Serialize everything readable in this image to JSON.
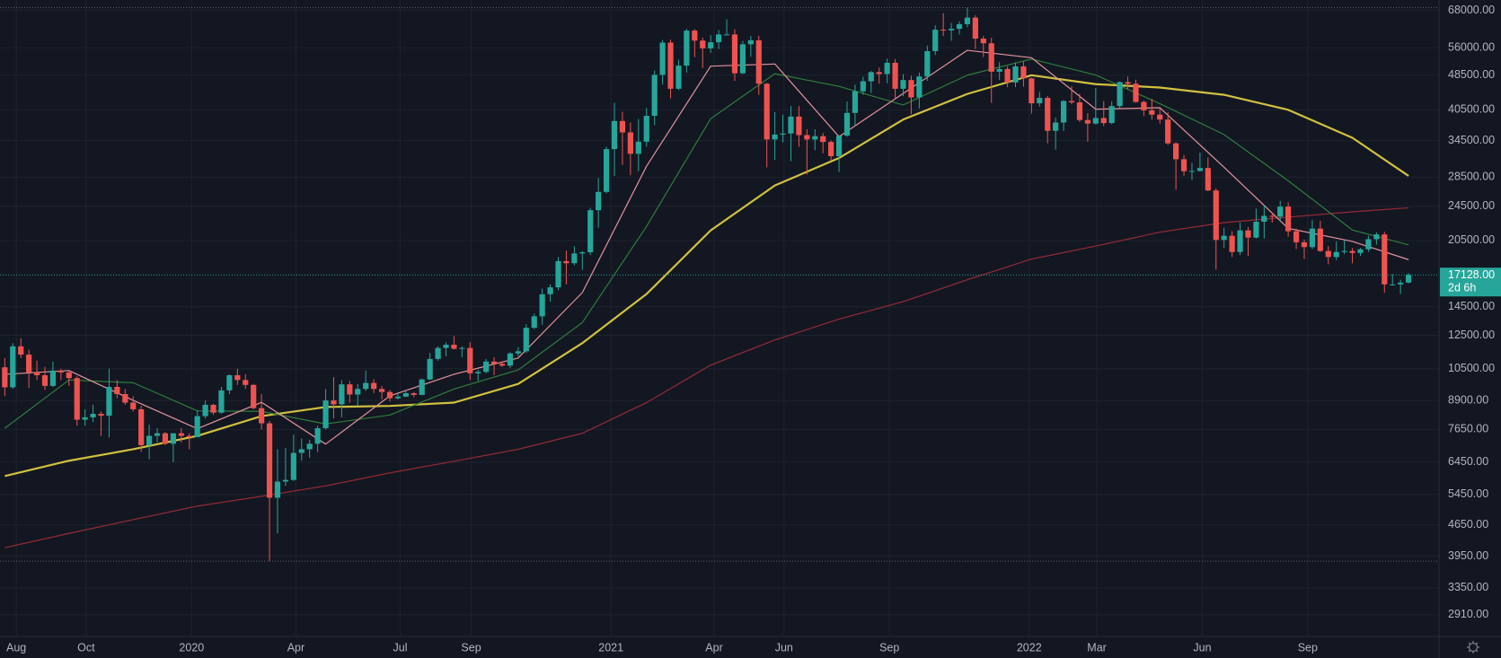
{
  "chart_data": {
    "type": "candlestick",
    "log_scale": true,
    "grid": true,
    "up_color": "#26a69a",
    "down_color": "#ef5350",
    "xlim": [
      -0.6,
      178.8
    ],
    "xticks": [
      {
        "value": 1.43,
        "label": "Aug"
      },
      {
        "value": 10.14,
        "label": "Oct"
      },
      {
        "value": 23.29,
        "label": "2020"
      },
      {
        "value": 36.29,
        "label": "Apr"
      },
      {
        "value": 49.29,
        "label": "Jul"
      },
      {
        "value": 58.14,
        "label": "Sep"
      },
      {
        "value": 75.57,
        "label": "2021"
      },
      {
        "value": 88.43,
        "label": "Apr"
      },
      {
        "value": 97.14,
        "label": "Jun"
      },
      {
        "value": 110.29,
        "label": "Sep"
      },
      {
        "value": 127.71,
        "label": "2022"
      },
      {
        "value": 136.14,
        "label": "Mar"
      },
      {
        "value": 149.29,
        "label": "Jun"
      },
      {
        "value": 162.43,
        "label": "Sep"
      }
    ],
    "ylim": [
      2600,
      71800
    ],
    "yticks": [
      {
        "value": 68000,
        "label": "68000.00"
      },
      {
        "value": 56000,
        "label": "56000.00"
      },
      {
        "value": 48500,
        "label": "48500.00"
      },
      {
        "value": 40500,
        "label": "40500.00"
      },
      {
        "value": 34500,
        "label": "34500.00"
      },
      {
        "value": 28500,
        "label": "28500.00"
      },
      {
        "value": 24500,
        "label": "24500.00"
      },
      {
        "value": 20500,
        "label": "20500.00"
      },
      {
        "value": 14500,
        "label": "14500.00"
      },
      {
        "value": 12500,
        "label": "12500.00"
      },
      {
        "value": 10500,
        "label": "10500.00"
      },
      {
        "value": 8900,
        "label": "8900.00"
      },
      {
        "value": 7650,
        "label": "7650.00"
      },
      {
        "value": 6450,
        "label": "6450.00"
      },
      {
        "value": 5450,
        "label": "5450.00"
      },
      {
        "value": 4650,
        "label": "4650.00"
      },
      {
        "value": 3950,
        "label": "3950.00"
      },
      {
        "value": 3350,
        "label": "3350.00"
      },
      {
        "value": 2910,
        "label": "2910.00"
      }
    ],
    "last_price": {
      "value": 17128,
      "label": "17128.00"
    },
    "countdown": "2d 6h",
    "open": [
      10580,
      9530,
      11800,
      11300,
      10300,
      10150,
      9600,
      10400,
      10300,
      10000,
      8050,
      8150,
      8300,
      8220,
      9550,
      9200,
      8800,
      8500,
      7050,
      7400,
      7500,
      7100,
      7500,
      7400,
      7350,
      8200,
      8700,
      8350,
      9380,
      10150,
      9900,
      9650,
      8550,
      7900,
      5360,
      5830,
      5880,
      6770,
      6900,
      7100,
      7700,
      8900,
      8720,
      9680,
      9180,
      9450,
      9750,
      9450,
      9300,
      9000,
      9080,
      9240,
      9160,
      9930,
      11050,
      11700,
      11900,
      11650,
      11700,
      10250,
      10330,
      10900,
      10770,
      10670,
      11370,
      11500,
      13000,
      13800,
      15480,
      16050,
      18400,
      18200,
      19150,
      19270,
      24000,
      26400,
      33000,
      38200,
      36000,
      32200,
      34300,
      39250,
      48600,
      57500,
      45200,
      51000,
      61200,
      58100,
      55800,
      57600,
      60000,
      60000,
      49000,
      57000,
      58200,
      46400,
      34700,
      35600,
      35800,
      39100,
      35500,
      34700,
      35300,
      34250,
      31800,
      35400,
      39850,
      44600,
      47000,
      49300,
      48800,
      51750,
      45200,
      47300,
      43200,
      48200,
      55000,
      61500,
      61300,
      61800,
      63300,
      65500,
      58700,
      57300,
      49400,
      50100,
      46700,
      50800,
      47700,
      41900,
      43100,
      36300,
      37900,
      42400,
      42100,
      38400,
      37700,
      38800,
      37800,
      41300,
      46800,
      46400,
      42200,
      40400,
      39500,
      38500,
      34000,
      31300,
      29400,
      29450,
      29900,
      26600,
      20550,
      21000,
      19300,
      21600,
      20800,
      22600,
      23300,
      23200,
      24450,
      21500,
      20300,
      19800,
      21800,
      19400,
      18800,
      19300,
      19400,
      19200,
      19570,
      20630,
      21150,
      16300,
      16300,
      16450
    ],
    "high": [
      11100,
      12000,
      12300,
      11600,
      10950,
      10600,
      10900,
      10500,
      10350,
      10100,
      8500,
      8700,
      8400,
      10500,
      9900,
      9450,
      9100,
      8650,
      7850,
      7700,
      7550,
      7500,
      7700,
      7500,
      8450,
      8900,
      8750,
      9550,
      10200,
      10500,
      10200,
      9700,
      9200,
      8000,
      6900,
      6950,
      7450,
      7300,
      7250,
      7800,
      9450,
      10050,
      9900,
      9850,
      9700,
      10400,
      9950,
      9600,
      9400,
      9300,
      9350,
      9300,
      9980,
      11400,
      11800,
      12050,
      12450,
      11800,
      12050,
      10450,
      11050,
      11150,
      10900,
      11450,
      11750,
      13250,
      14000,
      15950,
      16300,
      18800,
      19450,
      19900,
      19400,
      24300,
      28400,
      33400,
      42000,
      40100,
      37900,
      38600,
      40900,
      49700,
      58300,
      58400,
      52600,
      61800,
      61700,
      59000,
      59800,
      61400,
      64900,
      61600,
      58000,
      59500,
      59600,
      46600,
      40000,
      39500,
      41300,
      41300,
      36600,
      36600,
      35900,
      34500,
      35500,
      42300,
      46200,
      48100,
      49600,
      50500,
      52900,
      52800,
      48800,
      48400,
      49200,
      56600,
      62900,
      67000,
      63700,
      64200,
      69000,
      66300,
      59500,
      59000,
      51900,
      50800,
      51900,
      52100,
      47900,
      44500,
      43500,
      38900,
      42600,
      45800,
      44000,
      39800,
      45400,
      42400,
      42300,
      47000,
      48200,
      47400,
      42500,
      42900,
      40800,
      40000,
      34200,
      32000,
      30700,
      32400,
      31600,
      26900,
      21900,
      21500,
      22500,
      22000,
      24200,
      24600,
      23650,
      25200,
      25000,
      21800,
      20600,
      22800,
      22700,
      19900,
      20400,
      20500,
      19700,
      19700,
      21000,
      21400,
      21450,
      17200,
      16700,
      17300
    ],
    "low": [
      9100,
      9450,
      11100,
      9500,
      9900,
      9400,
      9550,
      9900,
      9600,
      7800,
      7800,
      7950,
      7400,
      7350,
      9000,
      8700,
      8400,
      6800,
      6550,
      7150,
      7050,
      6450,
      7150,
      6900,
      7350,
      8100,
      8250,
      8300,
      9200,
      9650,
      9450,
      8500,
      7650,
      3850,
      4450,
      5700,
      5850,
      6500,
      6600,
      6800,
      7650,
      8100,
      8150,
      8800,
      8650,
      9350,
      9250,
      8950,
      8850,
      8950,
      9050,
      9050,
      9150,
      9900,
      10950,
      11200,
      11600,
      11150,
      9900,
      9850,
      10250,
      10150,
      10600,
      10550,
      11200,
      11400,
      12900,
      13200,
      14900,
      15800,
      16300,
      18000,
      17600,
      19000,
      21900,
      26200,
      28700,
      30400,
      28800,
      29400,
      33400,
      37400,
      46200,
      43000,
      44900,
      49200,
      53300,
      50400,
      54500,
      55600,
      59800,
      47100,
      48800,
      53400,
      43800,
      30000,
      31200,
      34200,
      31000,
      33400,
      28900,
      32800,
      32300,
      31100,
      29300,
      35200,
      37400,
      43800,
      44200,
      46400,
      46500,
      42800,
      43500,
      39600,
      40800,
      47100,
      53900,
      59500,
      58000,
      60000,
      62300,
      55600,
      53300,
      42000,
      47300,
      45600,
      45600,
      45700,
      39700,
      41200,
      34000,
      32900,
      36300,
      41700,
      38000,
      34300,
      37500,
      37200,
      37600,
      40900,
      45100,
      42000,
      39200,
      38500,
      37700,
      33700,
      26700,
      28700,
      28100,
      29300,
      26500,
      17600,
      19700,
      18800,
      19000,
      18900,
      20700,
      20700,
      22500,
      22700,
      20900,
      19600,
      18600,
      19600,
      19300,
      18100,
      18500,
      19100,
      18200,
      18900,
      19300,
      20050,
      15600,
      16200,
      15500,
      16400
    ],
    "close": [
      9530,
      11800,
      11300,
      10300,
      10150,
      9600,
      10400,
      10300,
      10000,
      8050,
      8150,
      8300,
      8220,
      9550,
      9200,
      8800,
      8500,
      7050,
      7400,
      7500,
      7100,
      7500,
      7400,
      7350,
      8200,
      8700,
      8350,
      9380,
      10150,
      9900,
      9650,
      8550,
      7900,
      5360,
      5830,
      5880,
      6770,
      6900,
      7100,
      7700,
      8900,
      8720,
      9680,
      9180,
      9450,
      9750,
      9450,
      9300,
      9000,
      9080,
      9240,
      9160,
      9930,
      11050,
      11700,
      11900,
      11650,
      11700,
      10250,
      10330,
      10900,
      10770,
      10670,
      11370,
      11500,
      13000,
      13800,
      15480,
      16050,
      18400,
      18200,
      19150,
      19270,
      24000,
      26400,
      33000,
      38200,
      36000,
      32200,
      34300,
      39250,
      48600,
      57500,
      45200,
      51000,
      61200,
      58100,
      55800,
      57600,
      60000,
      60000,
      49000,
      57000,
      58200,
      46400,
      34700,
      35600,
      35800,
      39100,
      35500,
      34700,
      35300,
      34250,
      31800,
      35400,
      39850,
      44600,
      47000,
      49300,
      48800,
      51750,
      45200,
      47300,
      43200,
      48200,
      55000,
      61500,
      61300,
      61800,
      63300,
      65500,
      58700,
      57300,
      49400,
      50100,
      46700,
      50800,
      47700,
      41900,
      43100,
      36300,
      37900,
      42400,
      42100,
      38400,
      37700,
      38800,
      37800,
      41300,
      46800,
      46400,
      42200,
      40400,
      39500,
      38500,
      34000,
      31300,
      29400,
      29450,
      29900,
      26600,
      20550,
      21000,
      19300,
      21600,
      20800,
      22600,
      23300,
      23200,
      24450,
      21500,
      20300,
      19800,
      21800,
      19400,
      18800,
      19300,
      19400,
      19200,
      19570,
      20630,
      21150,
      16300,
      16300,
      16450,
      17128
    ],
    "series": [
      {
        "color": "#8c2a35",
        "width": 1.3,
        "x": [
          0,
          8,
          16,
          24,
          32,
          40,
          48,
          56,
          64,
          72,
          80,
          88,
          96,
          104,
          112,
          120,
          128,
          136,
          144,
          152,
          160,
          168,
          175
        ],
        "values": [
          4130,
          4450,
          4780,
          5130,
          5400,
          5700,
          6100,
          6480,
          6900,
          7500,
          8800,
          10700,
          12200,
          13600,
          14900,
          16700,
          18600,
          19900,
          21400,
          22500,
          23150,
          23800,
          24300
        ]
      },
      {
        "color": "#d1c13f",
        "width": 2.2,
        "x": [
          0,
          8,
          16,
          24,
          32,
          40,
          48,
          56,
          64,
          72,
          80,
          88,
          96,
          104,
          112,
          120,
          128,
          136,
          144,
          152,
          160,
          168,
          175
        ],
        "values": [
          6000,
          6500,
          6900,
          7400,
          8200,
          8600,
          8650,
          8800,
          9700,
          12000,
          15500,
          21600,
          27300,
          31500,
          38500,
          44000,
          48500,
          46300,
          45500,
          43800,
          40500,
          35000,
          28700
        ]
      },
      {
        "color": "#2f7d3a",
        "width": 1.2,
        "x": [
          0,
          8,
          16,
          24,
          32,
          40,
          48,
          56,
          64,
          72,
          80,
          88,
          96,
          104,
          112,
          120,
          128,
          136,
          144,
          152,
          160,
          168,
          175
        ],
        "values": [
          7700,
          9900,
          9760,
          8429,
          8407,
          7874,
          8249,
          9442,
          10435,
          13357,
          22050,
          38669,
          48883,
          45773,
          41528,
          48518,
          52773,
          48560,
          41835,
          35605,
          27978,
          21640,
          20029
        ]
      },
      {
        "color": "#e3939b",
        "width": 1.2,
        "x": [
          0,
          8,
          16,
          24,
          32,
          40,
          48,
          56,
          64,
          72,
          80,
          88,
          96,
          104,
          112,
          120,
          128,
          136,
          144,
          152,
          160,
          168,
          175
        ],
        "values": [
          10200,
          10400,
          8907,
          7680,
          8813,
          7089,
          9113,
          10201,
          11104,
          15622,
          30177,
          50855,
          51430,
          35215,
          44100,
          55230,
          53140,
          40630,
          40940,
          30020,
          21830,
          20395,
          18543
        ]
      }
    ]
  }
}
